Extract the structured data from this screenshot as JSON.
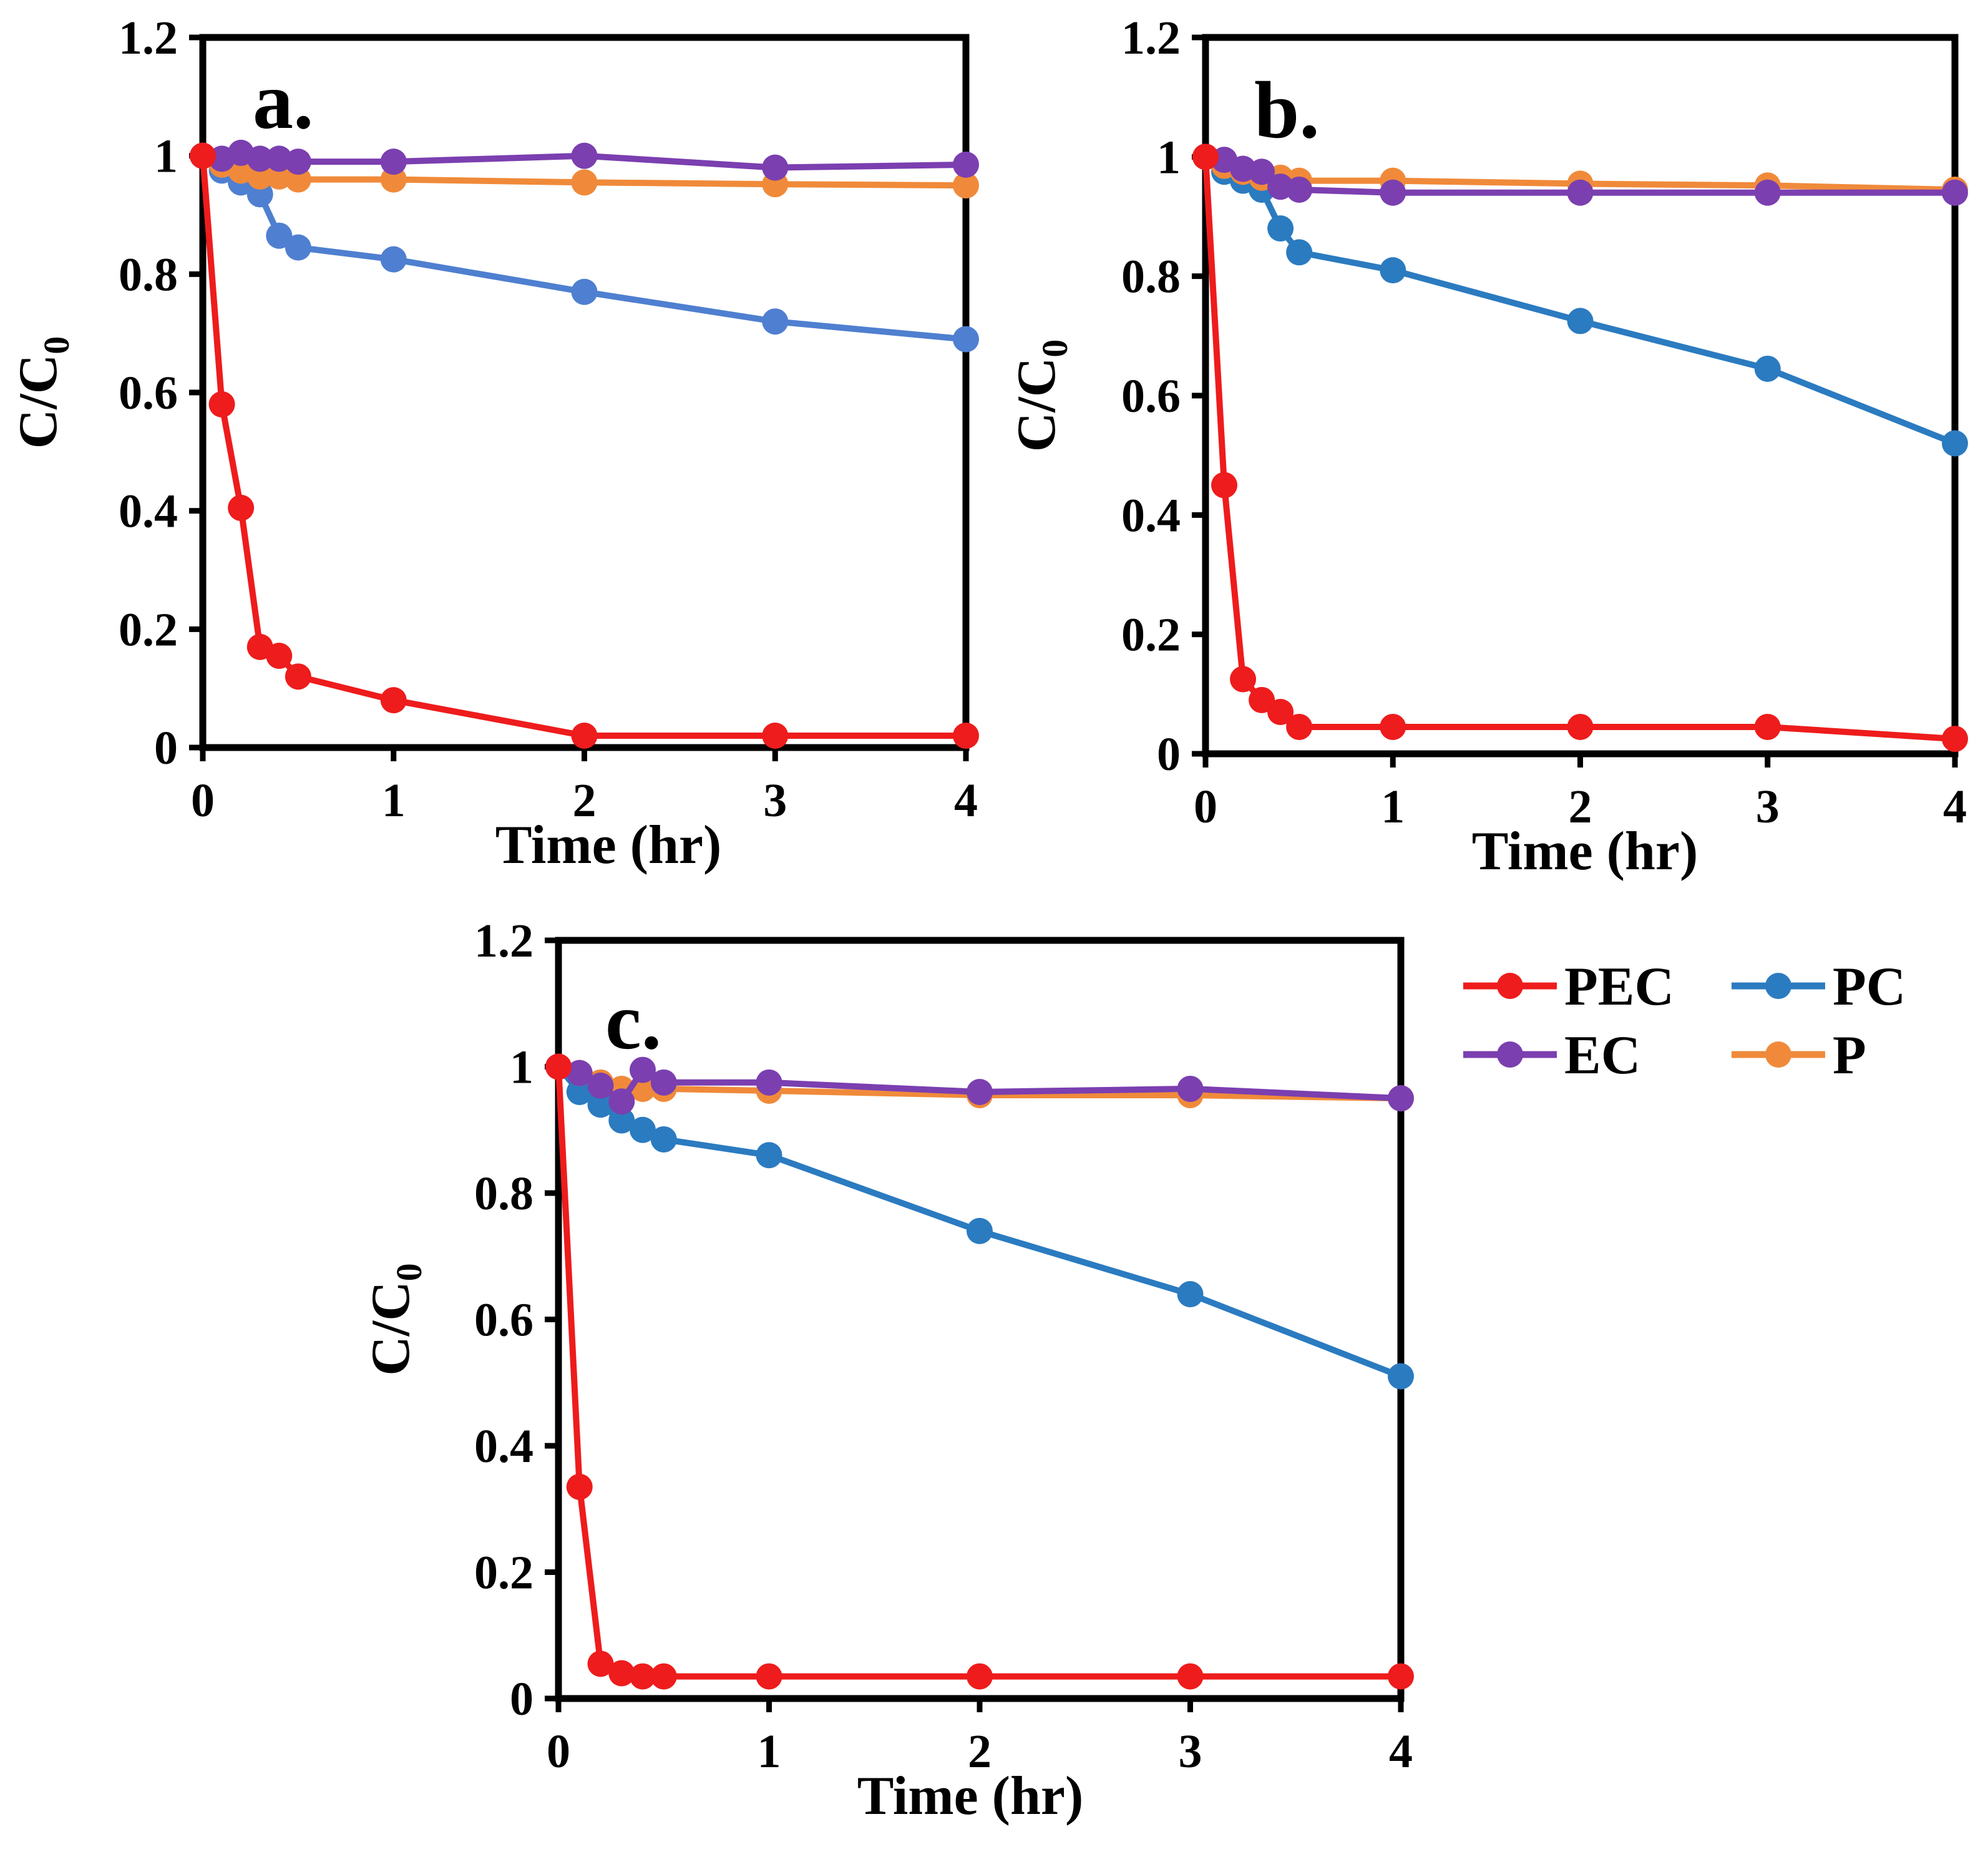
{
  "chart_data": [
    {
      "type": "line",
      "panel_label": "a.",
      "xlabel": "Time (hr)",
      "ylabel": "C/C",
      "ylabel_sub": "0",
      "xlim": [
        0,
        4
      ],
      "ylim": [
        0,
        1.2
      ],
      "xticks": [
        "0",
        "1",
        "2",
        "3",
        "4"
      ],
      "yticks": [
        "0",
        "0.2",
        "0.4",
        "0.6",
        "0.8",
        "1",
        "1.2"
      ],
      "series": [
        {
          "name": "PEC",
          "color": "#ee1c1c",
          "x": [
            0,
            0.1,
            0.2,
            0.3,
            0.4,
            0.5,
            1,
            2,
            3,
            4
          ],
          "y": [
            1.0,
            0.58,
            0.405,
            0.17,
            0.155,
            0.12,
            0.08,
            0.02,
            0.02,
            0.02
          ]
        },
        {
          "name": "PC",
          "color": "#4f7fd0",
          "x": [
            0,
            0.1,
            0.2,
            0.3,
            0.4,
            0.5,
            1,
            2,
            3,
            4
          ],
          "y": [
            1.0,
            0.975,
            0.955,
            0.935,
            0.865,
            0.845,
            0.825,
            0.77,
            0.72,
            0.69
          ]
        },
        {
          "name": "EC",
          "color": "#7b3fb0",
          "x": [
            0,
            0.1,
            0.2,
            0.3,
            0.4,
            0.5,
            1,
            2,
            3,
            4
          ],
          "y": [
            1.0,
            0.995,
            1.005,
            0.995,
            0.995,
            0.99,
            0.99,
            1.0,
            0.98,
            0.985
          ]
        },
        {
          "name": "P",
          "color": "#f08a3a",
          "x": [
            0,
            0.1,
            0.2,
            0.3,
            0.4,
            0.5,
            1,
            2,
            3,
            4
          ],
          "y": [
            1.0,
            0.985,
            0.975,
            0.965,
            0.965,
            0.96,
            0.96,
            0.955,
            0.952,
            0.95
          ]
        }
      ]
    },
    {
      "type": "line",
      "panel_label": "b.",
      "xlabel": "Time (hr)",
      "ylabel": "C/C",
      "ylabel_sub": "0",
      "xlim": [
        0,
        4
      ],
      "ylim": [
        0,
        1.2
      ],
      "xticks": [
        "0",
        "1",
        "2",
        "3",
        "4"
      ],
      "yticks": [
        "0",
        "0.2",
        "0.4",
        "0.6",
        "0.8",
        "1",
        "1.2"
      ],
      "series": [
        {
          "name": "PEC",
          "color": "#ee1c1c",
          "x": [
            0,
            0.1,
            0.2,
            0.3,
            0.4,
            0.5,
            1,
            2,
            3,
            4
          ],
          "y": [
            1.0,
            0.45,
            0.125,
            0.09,
            0.07,
            0.045,
            0.045,
            0.045,
            0.045,
            0.025
          ]
        },
        {
          "name": "PC",
          "color": "#2b7bc0",
          "x": [
            0,
            0.1,
            0.2,
            0.3,
            0.4,
            0.5,
            1,
            2,
            3,
            4
          ],
          "y": [
            1.0,
            0.975,
            0.96,
            0.945,
            0.88,
            0.84,
            0.81,
            0.725,
            0.645,
            0.52
          ]
        },
        {
          "name": "EC",
          "color": "#7b3fb0",
          "x": [
            0,
            0.1,
            0.2,
            0.3,
            0.4,
            0.5,
            1,
            2,
            3,
            4
          ],
          "y": [
            1.0,
            0.995,
            0.98,
            0.975,
            0.95,
            0.945,
            0.94,
            0.94,
            0.94,
            0.94
          ]
        },
        {
          "name": "P",
          "color": "#f08a3a",
          "x": [
            0,
            0.1,
            0.2,
            0.3,
            0.4,
            0.5,
            1,
            2,
            3,
            4
          ],
          "y": [
            1.0,
            0.985,
            0.975,
            0.965,
            0.965,
            0.96,
            0.96,
            0.955,
            0.952,
            0.945
          ]
        }
      ]
    },
    {
      "type": "line",
      "panel_label": "c.",
      "xlabel": "Time (hr)",
      "ylabel": "C/C",
      "ylabel_sub": "0",
      "xlim": [
        0,
        4
      ],
      "ylim": [
        0,
        1.2
      ],
      "xticks": [
        "0",
        "1",
        "2",
        "3",
        "4"
      ],
      "yticks": [
        "0",
        "0.2",
        "0.4",
        "0.6",
        "0.8",
        "1",
        "1.2"
      ],
      "series": [
        {
          "name": "PEC",
          "color": "#ee1c1c",
          "x": [
            0,
            0.1,
            0.2,
            0.3,
            0.4,
            0.5,
            1,
            2,
            3,
            4
          ],
          "y": [
            1.0,
            0.335,
            0.055,
            0.04,
            0.035,
            0.035,
            0.035,
            0.035,
            0.035,
            0.035
          ]
        },
        {
          "name": "PC",
          "color": "#2b7bc0",
          "x": [
            0,
            0.1,
            0.2,
            0.3,
            0.4,
            0.5,
            1,
            2,
            3,
            4
          ],
          "y": [
            1.0,
            0.96,
            0.94,
            0.915,
            0.9,
            0.885,
            0.86,
            0.74,
            0.64,
            0.51
          ]
        },
        {
          "name": "EC",
          "color": "#7b3fb0",
          "x": [
            0,
            0.1,
            0.2,
            0.3,
            0.4,
            0.5,
            1,
            2,
            3,
            4
          ],
          "y": [
            1.0,
            0.99,
            0.97,
            0.945,
            0.995,
            0.975,
            0.975,
            0.96,
            0.965,
            0.95
          ]
        },
        {
          "name": "P",
          "color": "#f08a3a",
          "x": [
            0,
            0.1,
            0.2,
            0.3,
            0.4,
            0.5,
            1,
            2,
            3,
            4
          ],
          "y": [
            1.0,
            0.99,
            0.975,
            0.965,
            0.965,
            0.965,
            0.962,
            0.955,
            0.955,
            0.95
          ]
        }
      ]
    }
  ],
  "legend": {
    "entries": [
      {
        "name": "PEC",
        "color": "#ee1c1c"
      },
      {
        "name": "PC",
        "color": "#2b7bc0"
      },
      {
        "name": "EC",
        "color": "#7b3fb0"
      },
      {
        "name": "P",
        "color": "#f08a3a"
      }
    ]
  }
}
